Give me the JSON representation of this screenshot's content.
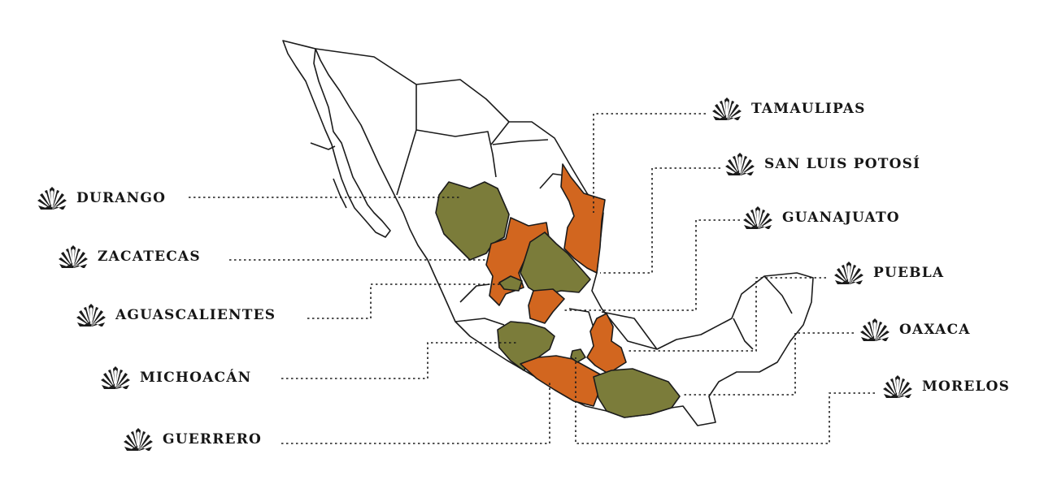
{
  "colors": {
    "orange": "#d2661f",
    "olive": "#7b7c3a",
    "land": "#ffffff",
    "border": "#1b1b1b"
  },
  "icon": "agave-icon",
  "states": [
    {
      "name": "DURANGO",
      "color": "olive"
    },
    {
      "name": "ZACATECAS",
      "color": "orange"
    },
    {
      "name": "AGUASCALIENTES",
      "color": "olive"
    },
    {
      "name": "MICHOACÁN",
      "color": "olive"
    },
    {
      "name": "GUERRERO",
      "color": "orange"
    },
    {
      "name": "TAMAULIPAS",
      "color": "orange"
    },
    {
      "name": "SAN LUIS POTOSÍ",
      "color": "olive"
    },
    {
      "name": "GUANAJUATO",
      "color": "orange"
    },
    {
      "name": "PUEBLA",
      "color": "orange"
    },
    {
      "name": "OAXACA",
      "color": "olive"
    },
    {
      "name": "MORELOS",
      "color": "olive"
    }
  ]
}
